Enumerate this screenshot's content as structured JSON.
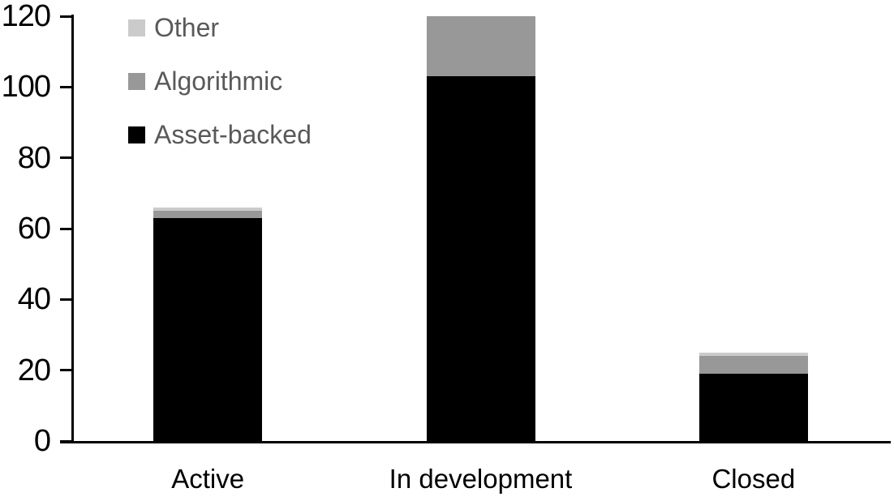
{
  "chart_data": {
    "type": "bar",
    "stacked": true,
    "title": "",
    "xlabel": "",
    "ylabel": "",
    "categories": [
      "Active",
      "In development",
      "Closed"
    ],
    "series": [
      {
        "name": "Asset-backed",
        "color": "#000000",
        "values": [
          63,
          103,
          19
        ]
      },
      {
        "name": "Algorithmic",
        "color": "#989898",
        "values": [
          2,
          17,
          5
        ]
      },
      {
        "name": "Other",
        "color": "#cbcbcb",
        "values": [
          1,
          0,
          1
        ]
      }
    ],
    "totals": [
      66,
      120,
      25
    ],
    "ylim": [
      0,
      120
    ],
    "yticks": [
      0,
      20,
      40,
      60,
      80,
      100,
      120
    ],
    "grid": false,
    "legend": {
      "position": "top-left",
      "order": [
        "Other",
        "Algorithmic",
        "Asset-backed"
      ]
    }
  },
  "colors": {
    "background": "#ffffff",
    "axis": "#000000",
    "tick_label_text": "#000000",
    "category_label_text": "#000000",
    "legend_text": "#595959"
  }
}
